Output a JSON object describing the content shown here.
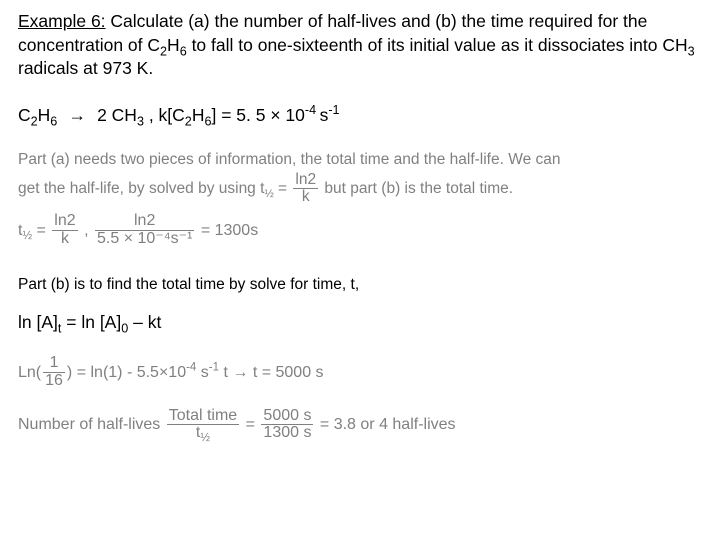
{
  "problem": {
    "label": "Example 6:",
    "text_part1": " Calculate (a) the number of half-lives and (b) the time required for the concentration of C",
    "sub1": "2",
    "mid1": "H",
    "sub2": "6",
    "text_part2": " to fall to one-sixteenth of  its initial value as it dissociates into CH",
    "sub3": "3",
    "text_part3": " radicals at 973 K."
  },
  "reaction": {
    "lhs_C": "C",
    "lhs_2": "2",
    "lhs_H": "H",
    "lhs_6": "6",
    "arrow": "→",
    "rhs_coef": " 2 CH",
    "rhs_3": "3",
    "comma": "  ,  k[C",
    "k_2": "2",
    "k_H": "H",
    "k_6": "6",
    "rate_eq": "] = 5. 5 × 10",
    "exp": "-4 ",
    "unit_s": "s",
    "unit_neg1": "-1"
  },
  "solnA": {
    "line1": "Part (a) needs two pieces of information, the total time and the half-life. We can",
    "line2a": "get the half-life, by solved by using ",
    "t_half_label": "t",
    "half_sub": "½",
    "eq": " = ",
    "num": "ln2",
    "den": "k",
    "line2b": " but part (b) is the total time.",
    "calc_lead": "t",
    "calc_eq1": " = ",
    "calc_num1": "ln2",
    "calc_den1": "k",
    "calc_comma": " , ",
    "calc_num2": "ln2",
    "calc_den2": "5.5 × 10⁻⁴s⁻¹",
    "calc_result": " = 1300s"
  },
  "partB_intro": "Part (b) is to find the total time by solve for time, t,",
  "eqB": {
    "lhs": "ln [A]",
    "sub_t": "t",
    "eq": " = ln [A]",
    "sub_0": "0",
    "rhs": " – kt"
  },
  "solnB": {
    "ln_lead": "Ln(",
    "frac_num": "1",
    "frac_den": "16",
    "close": ") = ln(1) - 5.5×10",
    "exp": "-4",
    "after_exp": " s",
    "s_neg1": "-1",
    "after_units": " t → t =  5000 s"
  },
  "solnC": {
    "lead": "Number of half-lives ",
    "num1": "Total time",
    "den1": "t",
    "den1_sub": "½",
    "eq": " = ",
    "num2": "5000 s",
    "den2": "1300 s",
    "tail": " = 3.8 or 4 half-lives"
  },
  "colors": {
    "text": "#000000",
    "solution": "#808080",
    "background": "#ffffff"
  },
  "fonts": {
    "body": "Arial",
    "solution": "Comic Sans MS",
    "body_size_pt": 13,
    "solution_size_pt": 12
  }
}
